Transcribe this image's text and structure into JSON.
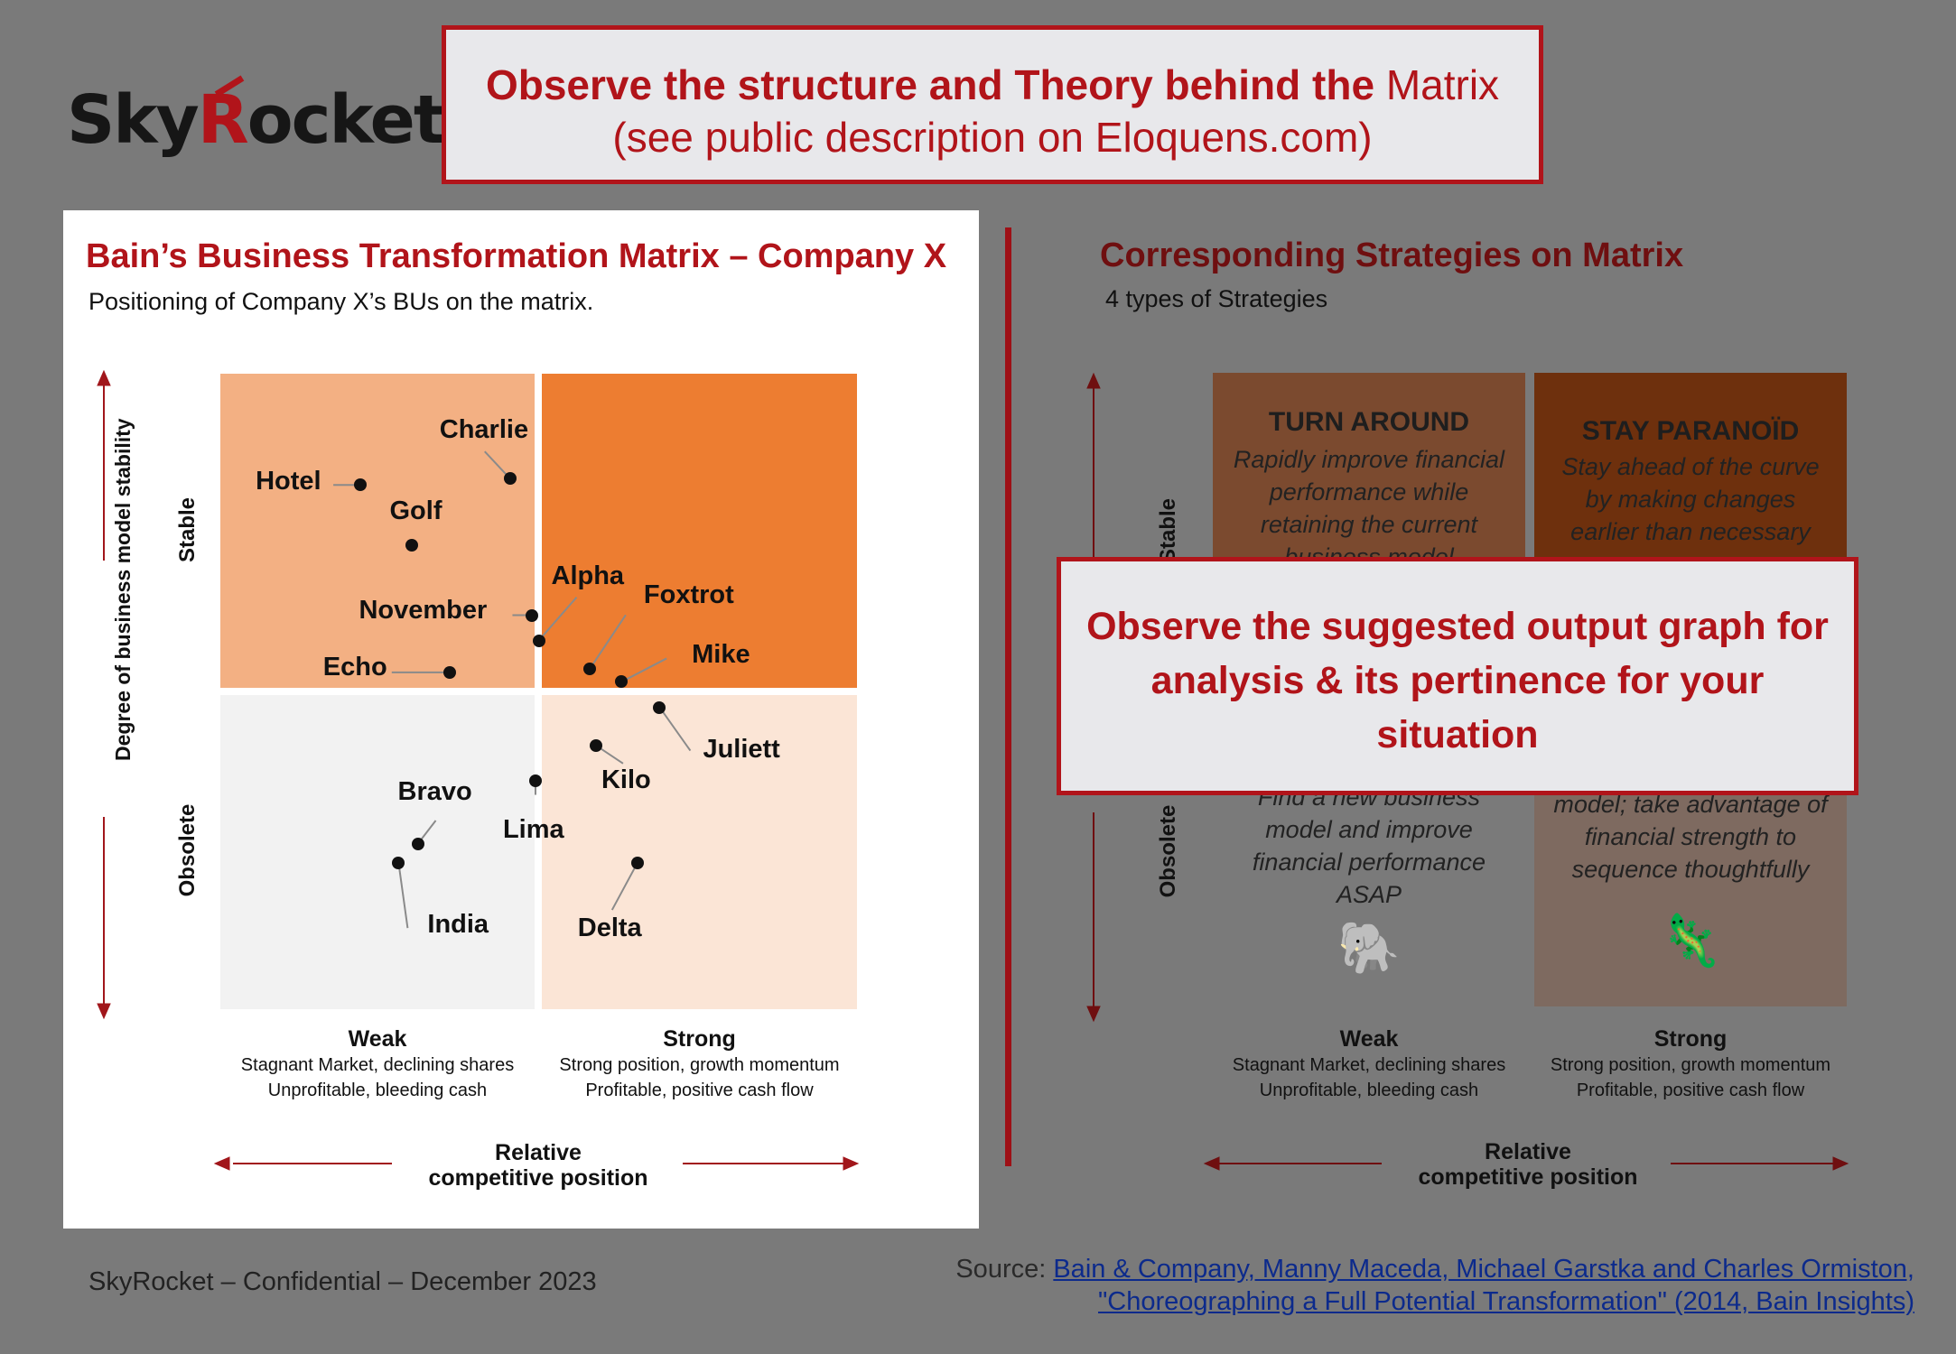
{
  "logo": {
    "text_pre": "Sky",
    "text_r": "R",
    "text_post": "ocket"
  },
  "top_callout": {
    "bold": "Observe the structure and Theory behind the",
    "normal": " Matrix",
    "line2": "(see public description on Eloquens.com)"
  },
  "left": {
    "title": "Bain’s Business Transformation Matrix – Company X",
    "subtitle": "Positioning of Company X’s BUs on the matrix.",
    "y_axis_title": "Degree of business model stability",
    "y_top": "Stable",
    "y_bottom": "Obsolete",
    "x_weak": {
      "title": "Weak",
      "line1": "Stagnant Market, declining shares",
      "line2": "Unprofitable, bleeding cash"
    },
    "x_strong": {
      "title": "Strong",
      "line1": "Strong position, growth momentum",
      "line2": "Profitable, positive cash flow"
    },
    "x_axis_title_1": "Relative",
    "x_axis_title_2": "competitive position",
    "colors": {
      "q_tl": "#f3b083",
      "q_tr": "#ed7d31",
      "q_bl": "#f2f2f2",
      "q_br": "#fbe5d6",
      "arrow": "#a1161b"
    }
  },
  "chart_data": {
    "type": "scatter",
    "title": "Bain’s Business Transformation Matrix – Company X",
    "subtitle": "Positioning of Company X’s BUs on the matrix.",
    "xlabel": "Relative competitive position",
    "ylabel": "Degree of business model stability",
    "xlim": [
      0,
      10
    ],
    "ylim": [
      0,
      10
    ],
    "x_ticks": [
      "Weak",
      "Strong"
    ],
    "y_ticks": [
      "Obsolete",
      "Stable"
    ],
    "grid": false,
    "points": [
      {
        "name": "Charlie",
        "x": 4.55,
        "y": 8.35
      },
      {
        "name": "Hotel",
        "x": 2.2,
        "y": 8.25
      },
      {
        "name": "Golf",
        "x": 3.0,
        "y": 7.3
      },
      {
        "name": "November",
        "x": 4.9,
        "y": 6.2
      },
      {
        "name": "Alpha",
        "x": 5.0,
        "y": 5.8
      },
      {
        "name": "Foxtrot",
        "x": 5.8,
        "y": 5.35
      },
      {
        "name": "Echo",
        "x": 3.6,
        "y": 5.3
      },
      {
        "name": "Mike",
        "x": 6.3,
        "y": 5.15
      },
      {
        "name": "Juliett",
        "x": 6.9,
        "y": 4.75
      },
      {
        "name": "Kilo",
        "x": 5.9,
        "y": 4.15
      },
      {
        "name": "Lima",
        "x": 4.95,
        "y": 3.6
      },
      {
        "name": "Bravo",
        "x": 3.1,
        "y": 2.6
      },
      {
        "name": "India",
        "x": 2.8,
        "y": 2.3
      },
      {
        "name": "Delta",
        "x": 6.55,
        "y": 2.3
      }
    ]
  },
  "right": {
    "title": "Corresponding Strategies on Matrix",
    "subtitle": "4 types of Strategies",
    "y_top": "Stable",
    "y_bottom": "Obsolete",
    "tl": {
      "head": "TURN AROUND",
      "body": "Rapidly improve financial performance while retaining the current business model"
    },
    "tr": {
      "head": "STAY PARANOÏD",
      "body": "Stay ahead of the curve by making changes earlier than necessary"
    },
    "bl": {
      "body": "Find a new business model and improve financial performance ASAP",
      "emoji": "🐘"
    },
    "br": {
      "body": "model; take advantage of financial strength to sequence thoughtfully",
      "emoji": "🦎"
    },
    "x_weak": {
      "title": "Weak",
      "line1": "Stagnant Market, declining shares",
      "line2": "Unprofitable, bleeding cash"
    },
    "x_strong": {
      "title": "Strong",
      "line1": "Strong position, growth momentum",
      "line2": "Profitable, positive cash flow"
    },
    "x_axis_title_1": "Relative",
    "x_axis_title_2": "competitive position",
    "colors": {
      "q_tl": "#7b4a2f",
      "q_tr": "#6e300d",
      "q_bl": "#7a7a7a",
      "q_br": "#7e6a60"
    }
  },
  "mid_callout": {
    "text": "Observe the suggested output graph for analysis & its pertinence for your situation"
  },
  "footer": {
    "left": "SkyRocket – Confidential – December 2023",
    "source_label": "Source: ",
    "source_link1": "Bain & Company, Manny Maceda, Michael Garstka and Charles Ormiston,",
    "source_link2": "\"Choreographing a Full Potential Transformation\" (2014, Bain Insights)"
  }
}
